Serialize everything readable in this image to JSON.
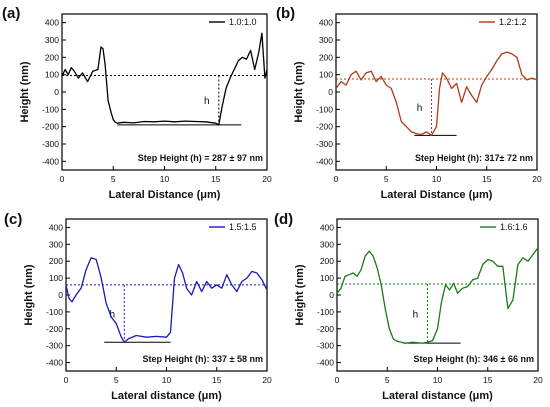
{
  "chart_data": [
    {
      "type": "line",
      "panel_label": "(a)",
      "xlabel": "Lateral Distance (μm)",
      "ylabel": "Height (nm)",
      "xlim": [
        0,
        20
      ],
      "ylim": [
        -450,
        450
      ],
      "xticks": [
        0,
        5,
        10,
        15,
        20
      ],
      "yticks": [
        -400,
        -300,
        -200,
        -100,
        0,
        100,
        200,
        300,
        400
      ],
      "legend_position": "top-right",
      "color": "#000000",
      "baseline_y": 95,
      "step_x": 15.3,
      "step_bottom_y": -190,
      "bottom_line_x": [
        5.4,
        17.5
      ],
      "step_label": "h",
      "annotation": "Step Height (h) = 287 ± 97 nm",
      "series": [
        {
          "name": "1.0:1.0",
          "x": [
            0,
            0.3,
            0.6,
            0.9,
            1.2,
            1.6,
            2.0,
            2.5,
            3.0,
            3.5,
            3.8,
            4.0,
            4.2,
            4.5,
            4.8,
            5.0,
            5.2,
            5.4,
            6,
            7,
            8,
            9,
            10,
            11,
            12,
            13,
            14,
            15,
            15.3,
            15.6,
            16.0,
            16.4,
            16.8,
            17.2,
            17.6,
            18.0,
            18.4,
            18.8,
            19.2,
            19.5,
            19.8,
            20.0
          ],
          "y": [
            90,
            130,
            100,
            140,
            120,
            80,
            110,
            60,
            120,
            130,
            260,
            250,
            160,
            -50,
            -120,
            -160,
            -175,
            -180,
            -175,
            -178,
            -170,
            -172,
            -168,
            -172,
            -168,
            -170,
            -172,
            -180,
            -190,
            -90,
            20,
            80,
            130,
            180,
            200,
            190,
            240,
            130,
            230,
            340,
            80,
            130
          ]
        }
      ]
    },
    {
      "type": "line",
      "panel_label": "(b)",
      "xlabel": "Lateral Distance (μm)",
      "ylabel": "Height (nm)",
      "xlim": [
        0,
        20
      ],
      "ylim": [
        -450,
        450
      ],
      "xticks": [
        0,
        5,
        10,
        15,
        20
      ],
      "yticks": [
        -400,
        -300,
        -200,
        -100,
        0,
        100,
        200,
        300,
        400
      ],
      "legend_position": "top-right",
      "color": "#b03a1a",
      "baseline_y": 75,
      "step_x": 9.5,
      "step_bottom_y": -250,
      "bottom_line_x": [
        7.8,
        12.0
      ],
      "step_label": "h",
      "annotation": "Step Height (h): 317± 72 nm",
      "series": [
        {
          "name": "1.2:1.2",
          "x": [
            0,
            0.5,
            1,
            1.5,
            2,
            2.5,
            3,
            3.5,
            4,
            4.5,
            5,
            5.5,
            6,
            6.5,
            7,
            7.5,
            8,
            8.5,
            9,
            9.5,
            10,
            10.3,
            10.6,
            11,
            11.5,
            12,
            12.5,
            13,
            13.5,
            14,
            14.5,
            15,
            15.5,
            16,
            16.5,
            17,
            17.5,
            18,
            18.5,
            19,
            19.5,
            20
          ],
          "y": [
            20,
            60,
            40,
            100,
            120,
            70,
            110,
            120,
            60,
            90,
            40,
            20,
            -60,
            -170,
            -200,
            -230,
            -240,
            -245,
            -230,
            -250,
            -200,
            20,
            110,
            80,
            20,
            50,
            -60,
            30,
            -20,
            -60,
            40,
            90,
            130,
            180,
            220,
            230,
            220,
            200,
            100,
            70,
            80,
            70
          ]
        }
      ]
    },
    {
      "type": "line",
      "panel_label": "(c)",
      "xlabel": "Lateral distance (μm)",
      "ylabel": "Height (nm)",
      "xlim": [
        0,
        20
      ],
      "ylim": [
        -450,
        450
      ],
      "xticks": [
        0,
        5,
        10,
        15,
        20
      ],
      "yticks": [
        -400,
        -300,
        -200,
        -100,
        0,
        100,
        200,
        300,
        400
      ],
      "legend_position": "top-right",
      "color": "#1a1ab8",
      "baseline_y": 60,
      "step_x": 5.8,
      "step_bottom_y": -280,
      "bottom_line_x": [
        3.8,
        10.4
      ],
      "step_label": "h",
      "annotation": "Step Height (h): 337 ± 58 nm",
      "series": [
        {
          "name": "1.5:1.5",
          "x": [
            0,
            0.3,
            0.6,
            1.0,
            1.5,
            2.0,
            2.5,
            3.0,
            3.5,
            4.0,
            4.5,
            5.0,
            5.5,
            5.8,
            6.2,
            7,
            8,
            9,
            10,
            10.4,
            10.8,
            11.2,
            11.6,
            12.0,
            12.5,
            13,
            13.5,
            14,
            14.5,
            15,
            15.5,
            16,
            16.5,
            17,
            17.5,
            18,
            18.5,
            19,
            19.5,
            20
          ],
          "y": [
            60,
            -20,
            -40,
            0,
            40,
            150,
            220,
            210,
            100,
            -50,
            -130,
            -170,
            -250,
            -280,
            -260,
            -240,
            -250,
            -245,
            -250,
            -220,
            100,
            180,
            130,
            40,
            0,
            80,
            20,
            80,
            40,
            60,
            40,
            120,
            60,
            20,
            80,
            100,
            140,
            130,
            90,
            30
          ]
        }
      ]
    },
    {
      "type": "line",
      "panel_label": "(d)",
      "xlabel": "Lateral distance (μm)",
      "ylabel": "Height (nm)",
      "xlim": [
        0,
        20
      ],
      "ylim": [
        -450,
        450
      ],
      "xticks": [
        0,
        5,
        10,
        15,
        20
      ],
      "yticks": [
        -400,
        -300,
        -200,
        -100,
        0,
        100,
        200,
        300,
        400
      ],
      "legend_position": "top-right",
      "color": "#1a7a1a",
      "baseline_y": 65,
      "step_x": 9.0,
      "step_bottom_y": -285,
      "bottom_line_x": [
        6.6,
        12.3
      ],
      "step_label": "h",
      "annotation": "Step Height (h): 346 ± 66 nm",
      "series": [
        {
          "name": "1.6:1.6",
          "x": [
            0,
            0.4,
            0.8,
            1.2,
            1.6,
            2.0,
            2.4,
            2.8,
            3.2,
            3.6,
            4.0,
            4.4,
            4.8,
            5.2,
            5.6,
            6.0,
            6.4,
            6.8,
            7.5,
            8.5,
            9.0,
            9.5,
            10.0,
            10.4,
            10.8,
            11.2,
            11.6,
            12.0,
            12.5,
            13,
            13.5,
            14,
            14.5,
            15,
            15.5,
            16,
            16.5,
            17,
            17.5,
            18,
            18.5,
            19,
            19.5,
            20
          ],
          "y": [
            10,
            40,
            110,
            120,
            130,
            110,
            150,
            230,
            260,
            230,
            160,
            60,
            -80,
            -200,
            -260,
            -275,
            -280,
            -285,
            -280,
            -285,
            -280,
            -270,
            -200,
            -40,
            60,
            30,
            70,
            10,
            40,
            50,
            90,
            100,
            180,
            210,
            200,
            170,
            170,
            -80,
            -30,
            180,
            220,
            200,
            240,
            280
          ]
        }
      ]
    }
  ]
}
